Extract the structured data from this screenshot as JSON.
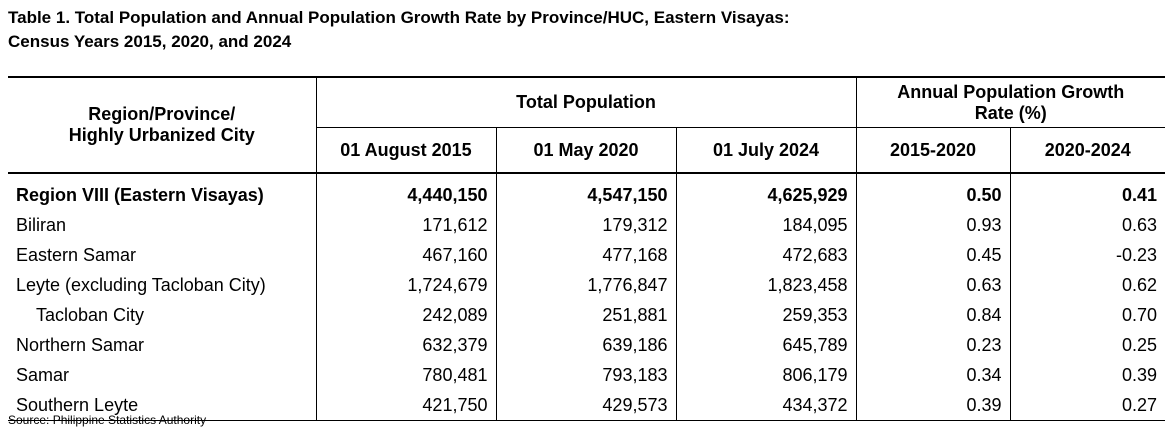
{
  "title": {
    "line1": "Table 1. Total Population and Annual Population Growth Rate by Province/HUC, Eastern Visayas:",
    "line2": "Census Years 2015, 2020, and 2024"
  },
  "header": {
    "col_area_line1": "Region/Province/",
    "col_area_line2": "Highly Urbanized City",
    "group_population": "Total Population",
    "group_growth_line1": "Annual Population Growth",
    "group_growth_line2": "Rate (%)",
    "pop_2015": "01 August 2015",
    "pop_2020": "01 May 2020",
    "pop_2024": "01 July 2024",
    "rate_1520": "2015-2020",
    "rate_2024": "2020-2024"
  },
  "rows": [
    {
      "name": "Region VIII (Eastern Visayas)",
      "p2015": "4,440,150",
      "p2020": "4,547,150",
      "p2024": "4,625,929",
      "r1520": "0.50",
      "r2024": "0.41"
    },
    {
      "name": "Biliran",
      "p2015": "171,612",
      "p2020": "179,312",
      "p2024": "184,095",
      "r1520": "0.93",
      "r2024": "0.63"
    },
    {
      "name": "Eastern Samar",
      "p2015": "467,160",
      "p2020": "477,168",
      "p2024": "472,683",
      "r1520": "0.45",
      "r2024": "-0.23"
    },
    {
      "name": "Leyte (excluding Tacloban City)",
      "p2015": "1,724,679",
      "p2020": "1,776,847",
      "p2024": "1,823,458",
      "r1520": "0.63",
      "r2024": "0.62"
    },
    {
      "name": "Tacloban City",
      "p2015": "242,089",
      "p2020": "251,881",
      "p2024": "259,353",
      "r1520": "0.84",
      "r2024": "0.70"
    },
    {
      "name": "Northern Samar",
      "p2015": "632,379",
      "p2020": "639,186",
      "p2024": "645,789",
      "r1520": "0.23",
      "r2024": "0.25"
    },
    {
      "name": "Samar",
      "p2015": "780,481",
      "p2020": "793,183",
      "p2024": "806,179",
      "r1520": "0.34",
      "r2024": "0.39"
    },
    {
      "name": "Southern Leyte",
      "p2015": "421,750",
      "p2020": "429,573",
      "p2024": "434,372",
      "r1520": "0.39",
      "r2024": "0.27"
    }
  ],
  "source": "Source: Philippine Statistics Authority"
}
